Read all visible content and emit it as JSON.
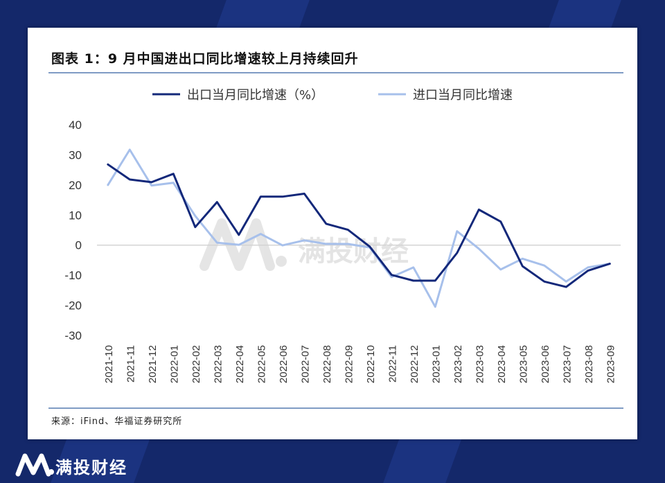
{
  "title": "图表 1：9 月中国进出口同比增速较上月持续回升",
  "source": "来源：iFind、华福证券研究所",
  "watermark": "满投财经",
  "footer_brand": "满投财经",
  "colors": {
    "background": "#14286a",
    "export_series": "#13287a",
    "import_series": "#a7c0eb",
    "rule": "#7f9bc4"
  },
  "chart_data": {
    "type": "line",
    "title": "图表 1：9 月中国进出口同比增速较上月持续回升",
    "xlabel": "",
    "ylabel": "",
    "ylim": [
      -30,
      40
    ],
    "yticks": [
      40,
      30,
      20,
      10,
      0,
      -10,
      -20,
      -30
    ],
    "grid": false,
    "legend_position": "top",
    "x": [
      "2021-10",
      "2021-11",
      "2021-12",
      "2022-01",
      "2022-02",
      "2022-03",
      "2022-04",
      "2022-05",
      "2022-06",
      "2022-07",
      "2022-08",
      "2022-09",
      "2022-10",
      "2022-11",
      "2022-12",
      "2023-01",
      "2023-02",
      "2023-03",
      "2023-04",
      "2023-05",
      "2023-06",
      "2023-07",
      "2023-08",
      "2023-09"
    ],
    "series": [
      {
        "name": "出口当月同比增速（%）",
        "color": "#13287a",
        "values": [
          26.8,
          21.8,
          20.9,
          23.7,
          6.0,
          14.3,
          3.4,
          16.1,
          16.1,
          17.1,
          7.1,
          5.1,
          -0.5,
          -9.9,
          -11.8,
          -11.8,
          -2.6,
          11.8,
          7.8,
          -7.0,
          -12.1,
          -13.9,
          -8.5,
          -6.2
        ]
      },
      {
        "name": "进口当月同比增速",
        "color": "#a7c0eb",
        "values": [
          20.0,
          31.7,
          19.8,
          20.7,
          9.7,
          0.8,
          0.1,
          3.7,
          -0.1,
          1.6,
          0.4,
          0.4,
          -0.8,
          -10.6,
          -7.4,
          -20.5,
          4.6,
          -1.2,
          -8.1,
          -4.5,
          -6.8,
          -12.1,
          -7.4,
          -6.2
        ]
      }
    ]
  }
}
